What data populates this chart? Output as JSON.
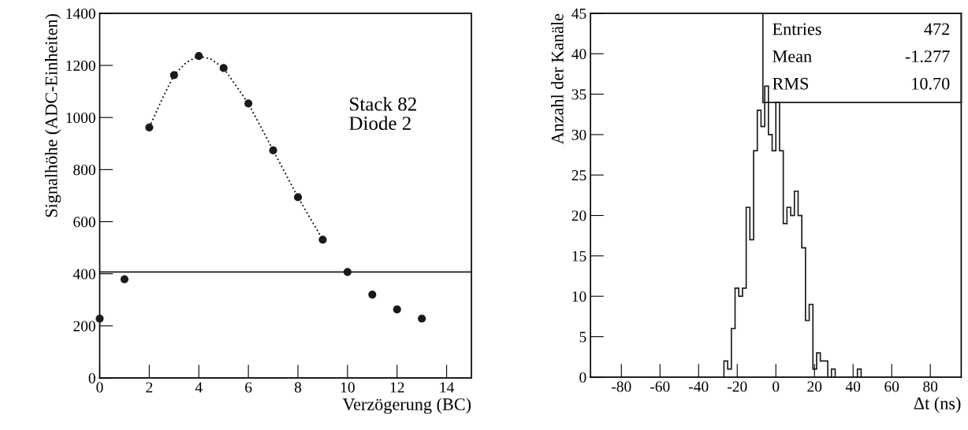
{
  "chart_data": [
    {
      "type": "scatter",
      "xlabel": "Verzögerung (BC)",
      "ylabel": "Signalhöhe (ADC-Einheiten)",
      "xlim": [
        0,
        15
      ],
      "xticks": [
        0,
        2,
        4,
        6,
        8,
        10,
        12,
        14
      ],
      "ylim": [
        0,
        1400
      ],
      "yticks": [
        0,
        200,
        400,
        600,
        800,
        1000,
        1200,
        1400
      ],
      "legend": false,
      "grid": false,
      "series": [
        {
          "type": "scatter",
          "x": [
            0,
            1,
            2,
            3,
            4,
            5,
            6,
            7,
            8,
            9,
            10,
            11,
            12,
            13
          ],
          "values": [
            228,
            379,
            962,
            1163,
            1236,
            1190,
            1054,
            874,
            694,
            531,
            407,
            320,
            263,
            228
          ],
          "color": "#1a1a1a",
          "marker": "circle"
        },
        {
          "type": "line",
          "x": [
            2,
            2.5,
            3,
            3.5,
            4,
            4.5,
            5,
            6,
            7,
            8,
            9
          ],
          "values": [
            962,
            1067,
            1163,
            1212,
            1236,
            1224,
            1190,
            1054,
            874,
            694,
            531
          ],
          "color": "#1a1a1a",
          "line_style": "dotted",
          "marker": "none"
        }
      ],
      "ref_lines": [
        {
          "axis": "y",
          "value": 407,
          "color": "#1a1a1a",
          "line_style": "solid"
        }
      ],
      "annotations": [
        "Stack 82\nDiode 2"
      ]
    },
    {
      "type": "histogram",
      "xlabel": "Δt (ns)",
      "ylabel": "Anzahl der Kanäle",
      "xlim": [
        -96,
        96
      ],
      "xticks": [
        -80,
        -60,
        -40,
        -20,
        0,
        20,
        40,
        60,
        80
      ],
      "ylim": [
        0,
        45
      ],
      "yticks": [
        0,
        5,
        10,
        15,
        20,
        25,
        30,
        35,
        40,
        45
      ],
      "legend": false,
      "grid": false,
      "color": "#1a1a1a",
      "bins": [
        -26.88,
        -24.96,
        -23.04,
        -21.12,
        -19.2,
        -17.28,
        -15.36,
        -13.44,
        -11.52,
        -9.6,
        -7.68,
        -5.76,
        -3.84,
        -1.92,
        0,
        1.92,
        3.84,
        5.76,
        7.68,
        9.6,
        11.52,
        13.44,
        15.36,
        17.28,
        19.2,
        21.12,
        23.04,
        24.96,
        26.88,
        28.8,
        30.72,
        32.64,
        34.56,
        36.48,
        38.4,
        40.32,
        42.24,
        44.16
      ],
      "values": [
        2,
        1,
        6,
        11,
        10,
        11,
        21,
        17,
        28,
        33,
        31,
        36,
        30,
        28,
        34,
        28,
        19,
        21,
        20,
        23,
        20,
        16,
        7,
        9,
        1,
        3,
        2,
        2,
        0,
        1,
        0,
        0,
        0,
        0,
        0,
        0,
        1
      ],
      "annotations": [
        "Entries",
        "472",
        "Mean",
        "-1.277",
        "RMS",
        "10.70"
      ]
    }
  ]
}
